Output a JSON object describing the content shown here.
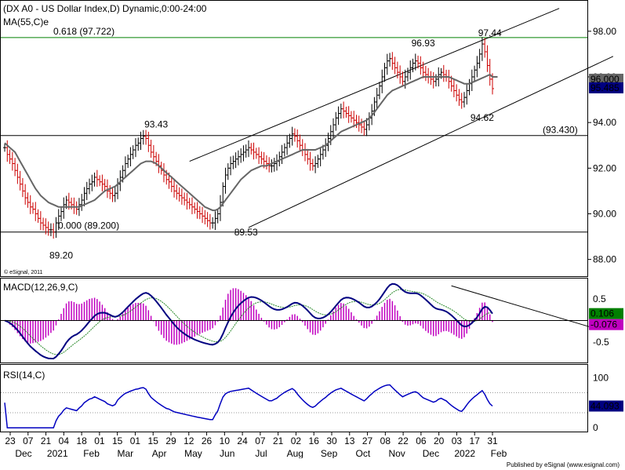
{
  "chart_data": [
    {
      "type": "line",
      "title": "(DX A0 - US Dollar Index,D) Dynamic,0:00-24:00",
      "ma_label": "MA(55,C)e",
      "credit": "© eSignal, 2011",
      "ylim": [
        87.3,
        99.3
      ],
      "y_ticks": [
        "98.00",
        "96.00",
        "94.00",
        "92.00",
        "90.00",
        "88.00"
      ],
      "y_tick_values": [
        98,
        96,
        94,
        92,
        90,
        88
      ],
      "last_price": "95.485",
      "ma_last": "96.000",
      "colors": {
        "price_up": "#000000",
        "price_down": "#cc0000",
        "ma": "#666666",
        "fib": "#008000",
        "price_box": "#000080"
      },
      "fib_label": "0.618 (97.722)",
      "fib_value": 97.722,
      "fib0_label": "0.000 (89.200)",
      "fib0_value": 89.2,
      "hline_label": "(93.430)",
      "hline_value": 93.43,
      "annotations": [
        {
          "text": "97.44",
          "x": 189,
          "y": 97.44
        },
        {
          "text": "96.93",
          "x": 163,
          "y": 96.93
        },
        {
          "text": "93.43",
          "x": 59,
          "y": 93.43
        },
        {
          "text": "89.20",
          "x": 22,
          "y": 89.2
        },
        {
          "text": "89.53",
          "x": 94,
          "y": 89.53
        },
        {
          "text": "94.62",
          "x": 186,
          "y": 94.62
        }
      ],
      "channel": [
        {
          "x": [
            72,
            216
          ],
          "y": [
            92.3,
            99.0
          ]
        },
        {
          "x": [
            95,
            237
          ],
          "y": [
            89.4,
            96.9
          ]
        }
      ],
      "close": [
        92.9,
        92.6,
        92.4,
        92.2,
        91.9,
        91.6,
        91.3,
        91.0,
        90.7,
        90.5,
        90.3,
        90.2,
        90.0,
        89.8,
        89.6,
        89.5,
        89.4,
        89.3,
        89.3,
        89.2,
        89.6,
        89.9,
        90.1,
        90.4,
        90.6,
        90.5,
        90.4,
        90.3,
        90.2,
        90.4,
        90.6,
        90.9,
        91.1,
        91.3,
        91.4,
        91.6,
        91.5,
        91.4,
        91.3,
        91.2,
        91.0,
        90.9,
        90.8,
        90.9,
        91.3,
        91.6,
        91.9,
        92.2,
        92.4,
        92.6,
        92.8,
        93.0,
        93.1,
        93.3,
        93.4,
        93.3,
        93.0,
        92.7,
        92.5,
        92.3,
        92.1,
        91.9,
        91.7,
        91.5,
        91.4,
        91.2,
        91.0,
        90.9,
        90.8,
        90.7,
        90.6,
        90.5,
        90.4,
        90.3,
        90.2,
        90.1,
        90.0,
        89.9,
        89.8,
        89.7,
        89.6,
        89.6,
        89.8,
        90.0,
        90.5,
        91.2,
        91.7,
        92.0,
        92.2,
        92.3,
        92.4,
        92.5,
        92.6,
        92.7,
        92.8,
        92.9,
        92.8,
        92.7,
        92.6,
        92.5,
        92.4,
        92.3,
        92.2,
        92.1,
        92.1,
        92.2,
        92.3,
        92.5,
        92.7,
        92.9,
        93.1,
        93.3,
        93.5,
        93.4,
        93.2,
        93.0,
        92.8,
        92.6,
        92.4,
        92.2,
        92.1,
        92.2,
        92.4,
        92.6,
        92.8,
        93.0,
        93.3,
        93.6,
        93.9,
        94.2,
        94.4,
        94.6,
        94.5,
        94.4,
        94.3,
        94.2,
        94.1,
        94.0,
        93.9,
        93.8,
        93.7,
        93.9,
        94.2,
        94.5,
        94.9,
        95.2,
        95.6,
        96.0,
        96.4,
        96.7,
        96.8,
        96.6,
        96.4,
        96.2,
        96.0,
        95.8,
        96.0,
        96.2,
        96.4,
        96.6,
        96.7,
        96.6,
        96.4,
        96.2,
        96.1,
        96.0,
        95.9,
        95.8,
        95.9,
        96.1,
        96.2,
        96.1,
        96.0,
        95.8,
        95.6,
        95.4,
        95.2,
        95.0,
        94.9,
        95.1,
        95.4,
        95.7,
        96.0,
        96.3,
        96.6,
        97.0,
        97.44,
        97.1,
        96.5,
        95.9,
        95.485
      ],
      "ma": [
        93.1,
        93.0,
        92.9,
        92.8,
        92.7,
        92.5,
        92.3,
        92.1,
        91.9,
        91.7,
        91.5,
        91.3,
        91.1,
        90.95,
        90.8,
        90.7,
        90.6,
        90.5,
        90.45,
        90.4,
        90.35,
        90.3,
        90.3,
        90.3,
        90.3,
        90.3,
        90.3,
        90.3,
        90.3,
        90.3,
        90.35,
        90.4,
        90.45,
        90.5,
        90.55,
        90.6,
        90.7,
        90.8,
        90.9,
        91.0,
        91.05,
        91.1,
        91.15,
        91.2,
        91.3,
        91.4,
        91.5,
        91.6,
        91.7,
        91.8,
        91.9,
        92.0,
        92.1,
        92.2,
        92.25,
        92.3,
        92.3,
        92.3,
        92.25,
        92.2,
        92.1,
        92.0,
        91.9,
        91.8,
        91.7,
        91.6,
        91.5,
        91.4,
        91.3,
        91.2,
        91.1,
        91.0,
        90.9,
        90.8,
        90.7,
        90.6,
        90.5,
        90.4,
        90.3,
        90.25,
        90.2,
        90.15,
        90.15,
        90.2,
        90.3,
        90.45,
        90.6,
        90.75,
        90.9,
        91.05,
        91.2,
        91.35,
        91.5,
        91.6,
        91.7,
        91.8,
        91.9,
        91.95,
        92.0,
        92.05,
        92.1,
        92.1,
        92.1,
        92.15,
        92.2,
        92.25,
        92.3,
        92.35,
        92.4,
        92.45,
        92.5,
        92.55,
        92.6,
        92.65,
        92.7,
        92.75,
        92.8,
        92.8,
        92.8,
        92.8,
        92.8,
        92.8,
        92.85,
        92.9,
        92.95,
        93.0,
        93.1,
        93.2,
        93.3,
        93.4,
        93.5,
        93.6,
        93.65,
        93.7,
        93.75,
        93.8,
        93.85,
        93.9,
        93.95,
        94.0,
        94.05,
        94.1,
        94.2,
        94.3,
        94.45,
        94.6,
        94.75,
        94.9,
        95.05,
        95.2,
        95.3,
        95.4,
        95.45,
        95.5,
        95.55,
        95.6,
        95.65,
        95.7,
        95.75,
        95.8,
        95.85,
        95.9,
        95.95,
        96.0,
        96.0,
        96.0,
        96.0,
        96.0,
        96.0,
        96.0,
        96.0,
        96.0,
        96.0,
        96.0,
        95.95,
        95.9,
        95.85,
        95.8,
        95.75,
        95.7,
        95.7,
        95.7,
        95.75,
        95.8,
        95.85,
        95.9,
        95.95,
        96.0,
        96.05,
        96.1,
        96.0,
        96.0,
        96.0
      ]
    },
    {
      "type": "line",
      "title": "MACD(12,26,9,C)",
      "ylim": [
        -0.95,
        0.95
      ],
      "y_ticks": [
        "0.5",
        "-0.5"
      ],
      "y_tick_values": [
        0.5,
        -0.5
      ],
      "zero_value": 0,
      "macd_last": "0.106",
      "hist_last": "-0.076",
      "colors": {
        "macd": "#000080",
        "signal": "#008000",
        "hist": "#c000c0",
        "macd_box": "#008000",
        "hist_box": "#c000c0"
      },
      "trendline": {
        "x": [
          174,
          231
        ],
        "y": [
          0.8,
          -0.2
        ]
      }
    },
    {
      "type": "line",
      "title": "RSI(14,C)",
      "ylim": [
        -6,
        124
      ],
      "y_ticks": [
        "100",
        "0"
      ],
      "y_tick_values": [
        100,
        0
      ],
      "levels": [
        70,
        30
      ],
      "rsi_last": "44.093",
      "colors": {
        "rsi": "#000080",
        "rsi_box": "#000080"
      }
    }
  ],
  "x_axis": {
    "days": [
      "23",
      "07",
      "21",
      "04",
      "18",
      "01",
      "15",
      "01",
      "15",
      "29",
      "12",
      "26",
      "10",
      "24",
      "07",
      "21",
      "02",
      "16",
      "30",
      "13",
      "27",
      "08",
      "22",
      "06",
      "20",
      "03",
      "17",
      "31"
    ],
    "months": [
      "Dec",
      "2021",
      "Feb",
      "Mar",
      "Apr",
      "May",
      "Jun",
      "Jul",
      "Aug",
      "Sep",
      "Oct",
      "Nov",
      "Dec",
      "2022",
      "Feb"
    ]
  },
  "footer": "Published by eSignal (www.esignal.com)"
}
